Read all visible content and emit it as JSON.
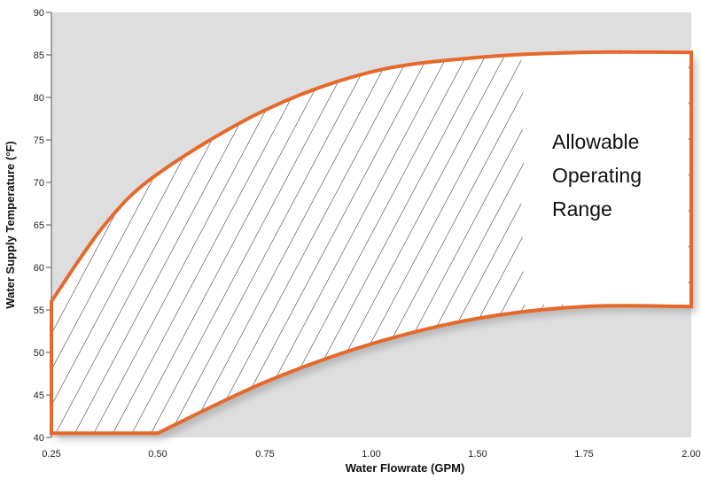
{
  "chart_data": {
    "type": "area",
    "title": "",
    "xlabel": "Water Flowrate (GPM)",
    "ylabel": "Water Supply Temperature (°F)",
    "x_categories": [
      "0.25",
      "0.50",
      "0.75",
      "1.00",
      "1.50",
      "1.75",
      "2.00"
    ],
    "y_ticks": [
      40,
      45,
      50,
      55,
      60,
      65,
      70,
      75,
      80,
      85,
      90
    ],
    "ylim": [
      40,
      90
    ],
    "grid": false,
    "series": [
      {
        "name": "",
        "upper": [
          {
            "x": 0.25,
            "y": 56
          },
          {
            "x": 0.375,
            "y": 65
          },
          {
            "x": 0.5,
            "y": 71
          },
          {
            "x": 0.75,
            "y": 78.5
          },
          {
            "x": 1.0,
            "y": 83
          },
          {
            "x": 1.5,
            "y": 84.7
          },
          {
            "x": 1.75,
            "y": 85.3
          },
          {
            "x": 2.0,
            "y": 85.3
          }
        ],
        "lower": [
          {
            "x": 0.25,
            "y": 52.5
          },
          {
            "x": 0.25,
            "y": 40.5
          },
          {
            "x": 0.5,
            "y": 40.5
          },
          {
            "x": 0.75,
            "y": 46.5
          },
          {
            "x": 1.0,
            "y": 51
          },
          {
            "x": 1.5,
            "y": 54
          },
          {
            "x": 1.75,
            "y": 55.4
          },
          {
            "x": 2.0,
            "y": 55.4
          }
        ]
      }
    ],
    "annotation": [
      "Allowable",
      "Operating",
      "Range"
    ],
    "colors": {
      "outline": "#e5692a",
      "plot_background": "#dedede",
      "hatch": "#222222",
      "shadow": "#9a9a9a"
    }
  }
}
